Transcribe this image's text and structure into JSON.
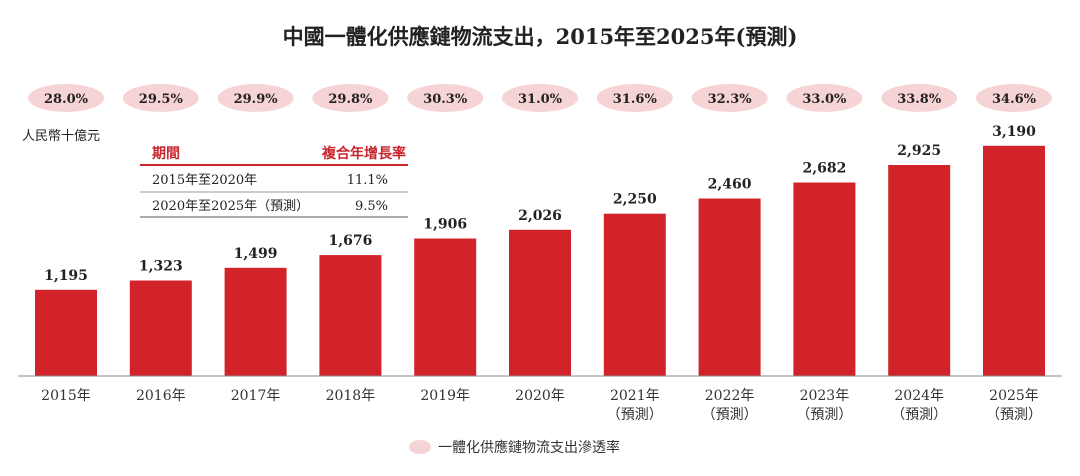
{
  "title": "中國一體化供應鏈物流支出，2015年至2025年(預測)",
  "unit_label": "人民幣十億元",
  "colors": {
    "bar": "#d2232a",
    "pill": "#f6d3d4",
    "accent": "#c8262c"
  },
  "cagr_table": {
    "headers": [
      "期間",
      "複合年增長率"
    ],
    "rows": [
      {
        "period": "2015年至2020年",
        "rate": "11.1%"
      },
      {
        "period": "2020年至2025年（預測）",
        "rate": "9.5%"
      }
    ]
  },
  "legend": {
    "label": "一體化供應鏈物流支出滲透率"
  },
  "chart_data": {
    "type": "bar",
    "title": "中國一體化供應鏈物流支出，2015年至2025年(預測)",
    "ylabel": "人民幣十億元",
    "xlabel": "",
    "ylim": [
      0,
      3300
    ],
    "grid": false,
    "categories": [
      [
        "2015年"
      ],
      [
        "2016年"
      ],
      [
        "2017年"
      ],
      [
        "2018年"
      ],
      [
        "2019年"
      ],
      [
        "2020年"
      ],
      [
        "2021年",
        "（預測）"
      ],
      [
        "2022年",
        "（預測）"
      ],
      [
        "2023年",
        "（預測）"
      ],
      [
        "2024年",
        "（預測）"
      ],
      [
        "2025年",
        "（預測）"
      ]
    ],
    "values": [
      1195,
      1323,
      1499,
      1676,
      1906,
      2026,
      2250,
      2460,
      2682,
      2925,
      3190
    ],
    "value_labels": [
      "1,195",
      "1,323",
      "1,499",
      "1,676",
      "1,906",
      "2,026",
      "2,250",
      "2,460",
      "2,682",
      "2,925",
      "3,190"
    ],
    "penetration_rate": {
      "name": "一體化供應鏈物流支出滲透率",
      "labels": [
        "28.0%",
        "29.5%",
        "29.9%",
        "29.8%",
        "30.3%",
        "31.0%",
        "31.6%",
        "32.3%",
        "33.0%",
        "33.8%",
        "34.6%"
      ]
    }
  }
}
